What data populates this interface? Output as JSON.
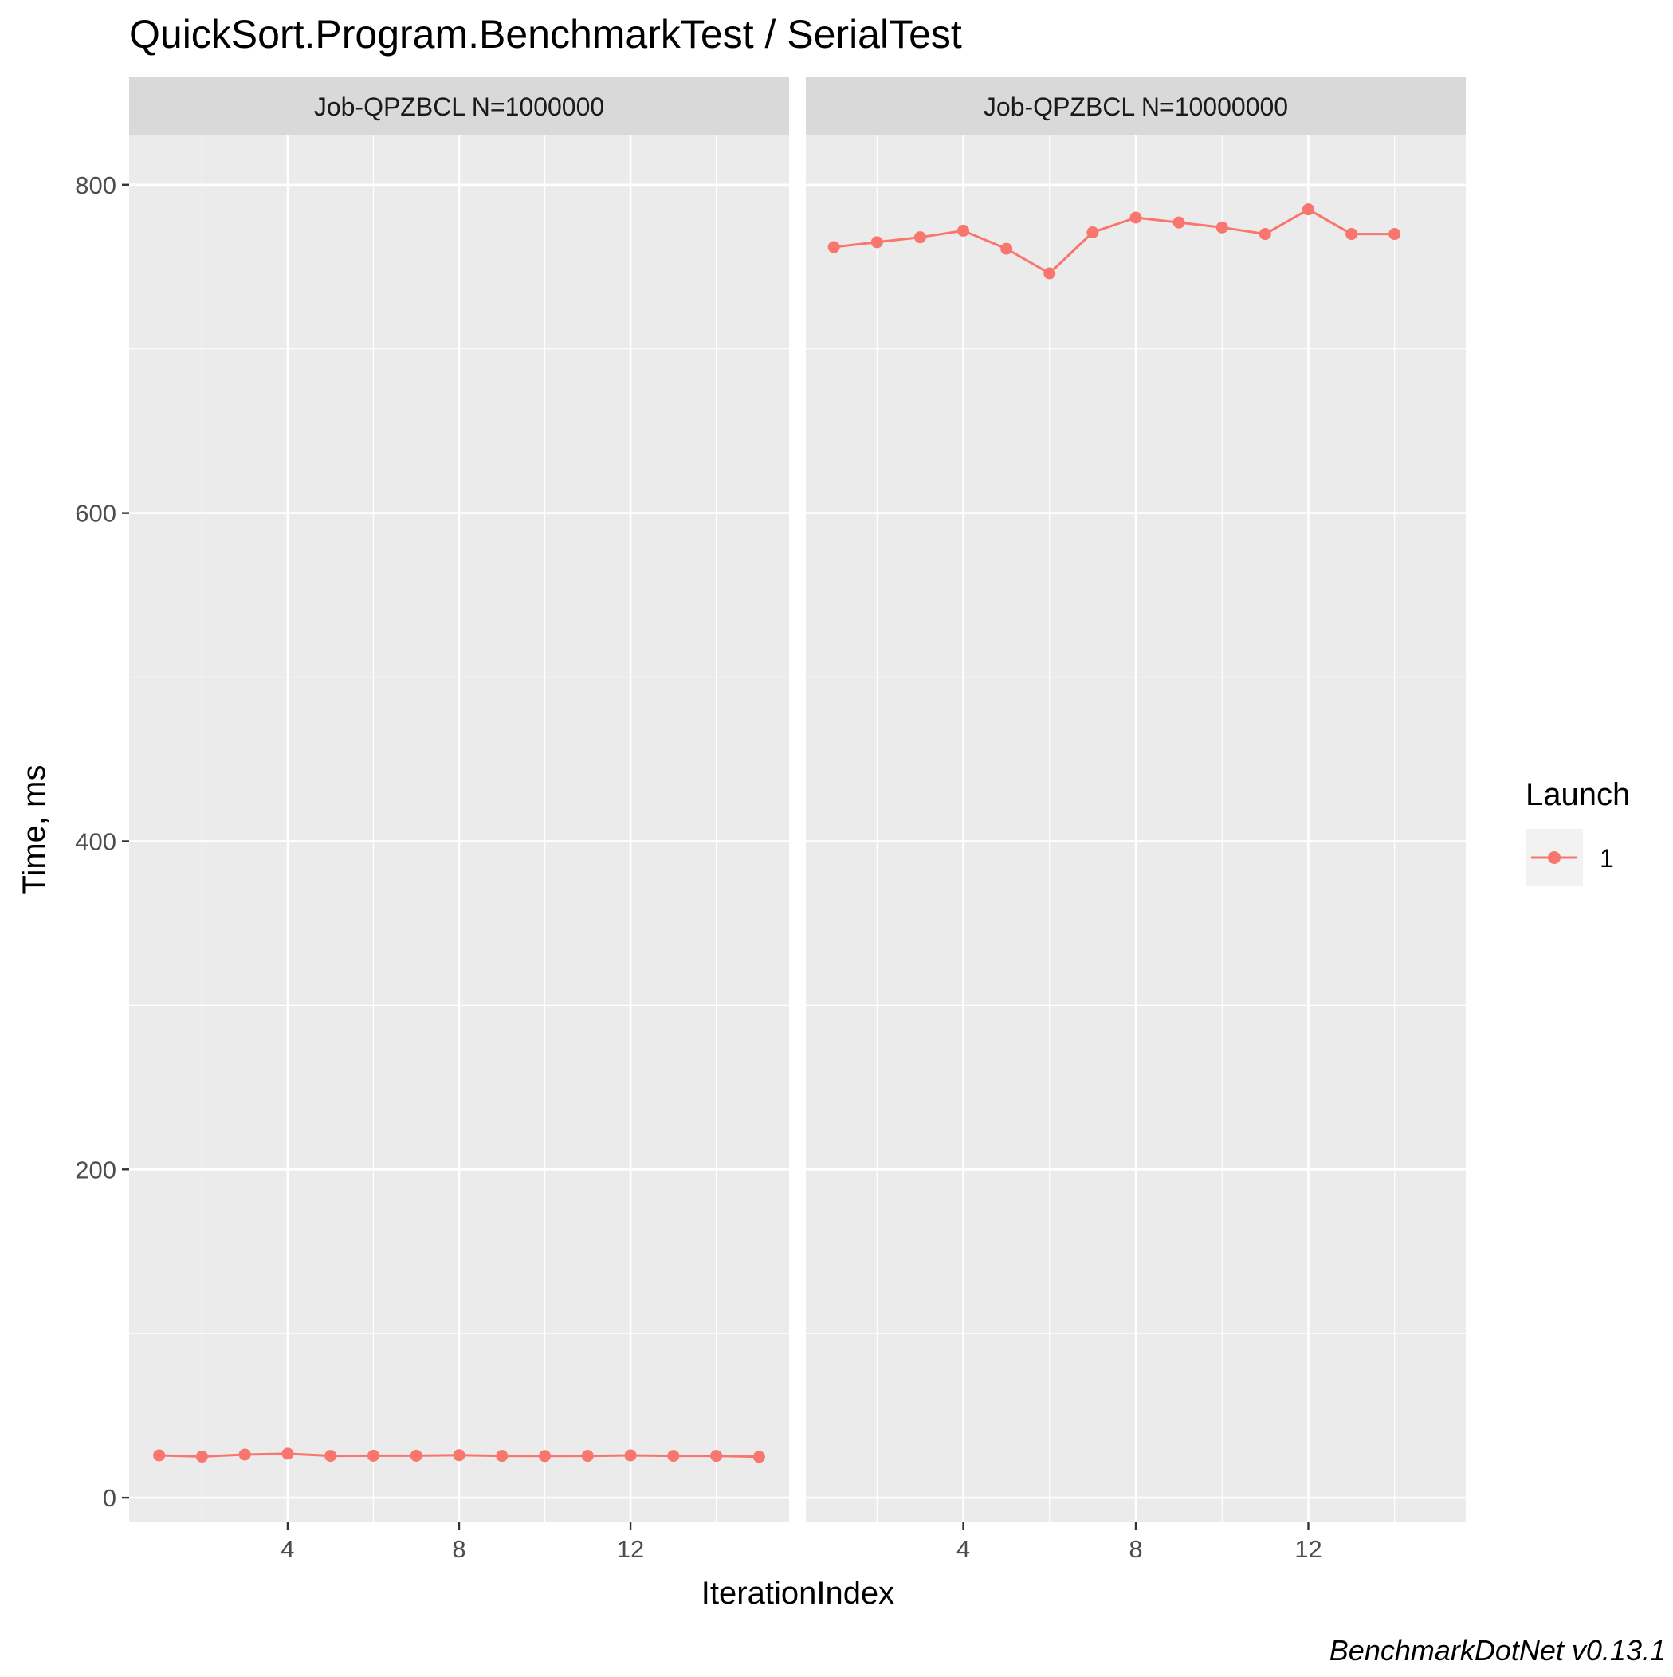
{
  "chart_data": {
    "type": "line",
    "title": "QuickSort.Program.BenchmarkTest / SerialTest",
    "xlabel": "IterationIndex",
    "ylabel": "Time, ms",
    "caption": "BenchmarkDotNet v0.13.1",
    "ylim": [
      -15,
      830
    ],
    "y_ticks": [
      0,
      200,
      400,
      600,
      800
    ],
    "y_tick_labels": [
      "0",
      "200",
      "400",
      "600",
      "800"
    ],
    "x_ticks": [
      4,
      8,
      12
    ],
    "x_tick_labels": [
      "4",
      "8",
      "12"
    ],
    "legend": {
      "title": "Launch",
      "position": "right",
      "entries": [
        "1"
      ]
    },
    "series_color": "#F8766D",
    "panel_background": "#EBEBEB",
    "strip_background": "#D9D9D9",
    "grid": true,
    "facets": [
      {
        "label": "Job-QPZBCL N=1000000",
        "xlim": [
          0.3,
          15.7
        ],
        "series": [
          {
            "name": "1",
            "x": [
              1,
              2,
              3,
              4,
              5,
              6,
              7,
              8,
              9,
              10,
              11,
              12,
              13,
              14,
              15
            ],
            "y": [
              25.8,
              25.1,
              26.3,
              26.8,
              25.5,
              25.6,
              25.6,
              25.9,
              25.5,
              25.4,
              25.5,
              25.8,
              25.5,
              25.5,
              24.9
            ]
          }
        ]
      },
      {
        "label": "Job-QPZBCL N=10000000",
        "xlim": [
          0.35,
          15.65
        ],
        "series": [
          {
            "name": "1",
            "x": [
              1,
              2,
              3,
              4,
              5,
              6,
              7,
              8,
              9,
              10,
              11,
              12,
              13,
              14
            ],
            "y": [
              762,
              765,
              768,
              772,
              761,
              746,
              771,
              780,
              777,
              774,
              770,
              785,
              770,
              770
            ]
          }
        ]
      }
    ]
  }
}
